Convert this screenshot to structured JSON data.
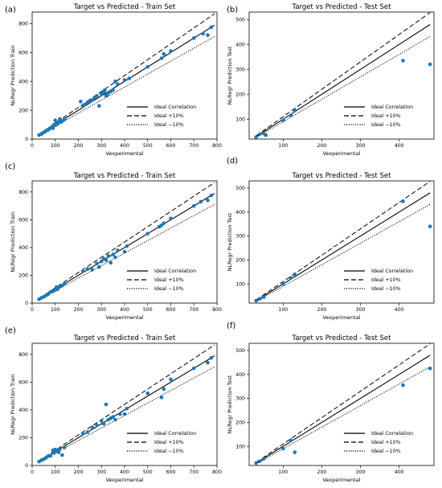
{
  "panel_labels": [
    "(a)",
    "(b)",
    "(c)",
    "(d)",
    "(e)",
    "(f)"
  ],
  "colors": {
    "point": "#1f77b4",
    "line": "#000000"
  },
  "legend": {
    "items": [
      "Ideal Correlation",
      "Ideal +10%",
      "Ideal −10%"
    ],
    "styles": [
      "solid",
      "dashed",
      "dotted"
    ],
    "placement": "lower-right"
  },
  "chart_data": [
    {
      "type": "scatter",
      "title": "Target vs Predicted - Train Set",
      "xlabel": "Vexperimental",
      "ylabel": "NLRegr Prediction Train",
      "xlim": [
        0,
        800
      ],
      "ylim": [
        0,
        880
      ],
      "xticks": [
        0,
        100,
        200,
        300,
        400,
        500,
        600,
        700,
        800
      ],
      "yticks": [
        0,
        200,
        400,
        600,
        800
      ],
      "ideal_range": [
        30,
        790
      ],
      "points": [
        [
          30,
          28
        ],
        [
          40,
          35
        ],
        [
          45,
          42
        ],
        [
          55,
          50
        ],
        [
          60,
          58
        ],
        [
          70,
          65
        ],
        [
          75,
          72
        ],
        [
          80,
          78
        ],
        [
          85,
          82
        ],
        [
          90,
          75
        ],
        [
          95,
          100
        ],
        [
          100,
          95
        ],
        [
          100,
          130
        ],
        [
          105,
          110
        ],
        [
          110,
          105
        ],
        [
          115,
          120
        ],
        [
          120,
          140
        ],
        [
          125,
          118
        ],
        [
          130,
          125
        ],
        [
          140,
          135
        ],
        [
          210,
          260
        ],
        [
          220,
          230
        ],
        [
          230,
          240
        ],
        [
          240,
          255
        ],
        [
          250,
          260
        ],
        [
          260,
          270
        ],
        [
          270,
          285
        ],
        [
          280,
          300
        ],
        [
          290,
          230
        ],
        [
          300,
          310
        ],
        [
          305,
          320
        ],
        [
          310,
          330
        ],
        [
          315,
          340
        ],
        [
          320,
          300
        ],
        [
          325,
          310
        ],
        [
          330,
          320
        ],
        [
          340,
          330
        ],
        [
          350,
          340
        ],
        [
          360,
          400
        ],
        [
          370,
          380
        ],
        [
          400,
          410
        ],
        [
          420,
          420
        ],
        [
          500,
          500
        ],
        [
          560,
          560
        ],
        [
          570,
          590
        ],
        [
          600,
          610
        ],
        [
          700,
          700
        ],
        [
          740,
          730
        ],
        [
          760,
          720
        ],
        [
          775,
          775
        ]
      ]
    },
    {
      "type": "scatter",
      "title": "Target vs Predicted - Test Set",
      "xlabel": "Vexperimental",
      "ylabel": "NLRegr Prediction Test",
      "xlim": [
        12,
        490
      ],
      "ylim": [
        20,
        530
      ],
      "xticks": [
        100,
        200,
        300,
        400
      ],
      "yticks": [
        100,
        200,
        300,
        400,
        500
      ],
      "ideal_range": [
        30,
        480
      ],
      "points": [
        [
          30,
          28
        ],
        [
          40,
          40
        ],
        [
          50,
          42
        ],
        [
          55,
          36
        ],
        [
          100,
          95
        ],
        [
          120,
          115
        ],
        [
          130,
          135
        ],
        [
          410,
          335
        ],
        [
          480,
          320
        ]
      ]
    },
    {
      "type": "scatter",
      "title": "Target vs Predicted - Train Set",
      "xlabel": "Vexperimental",
      "ylabel": "NLRegr Prediction Train",
      "xlim": [
        0,
        800
      ],
      "ylim": [
        0,
        880
      ],
      "xticks": [
        0,
        100,
        200,
        300,
        400,
        500,
        600,
        700,
        800
      ],
      "yticks": [
        0,
        200,
        400,
        600,
        800
      ],
      "ideal_range": [
        30,
        790
      ],
      "points": [
        [
          30,
          28
        ],
        [
          40,
          38
        ],
        [
          50,
          45
        ],
        [
          60,
          55
        ],
        [
          70,
          65
        ],
        [
          80,
          80
        ],
        [
          90,
          85
        ],
        [
          100,
          95
        ],
        [
          105,
          115
        ],
        [
          110,
          100
        ],
        [
          120,
          118
        ],
        [
          130,
          125
        ],
        [
          140,
          140
        ],
        [
          220,
          230
        ],
        [
          240,
          245
        ],
        [
          260,
          240
        ],
        [
          280,
          285
        ],
        [
          290,
          260
        ],
        [
          300,
          300
        ],
        [
          310,
          320
        ],
        [
          320,
          310
        ],
        [
          330,
          340
        ],
        [
          340,
          290
        ],
        [
          350,
          350
        ],
        [
          360,
          330
        ],
        [
          370,
          380
        ],
        [
          400,
          370
        ],
        [
          410,
          410
        ],
        [
          500,
          500
        ],
        [
          550,
          550
        ],
        [
          560,
          560
        ],
        [
          570,
          575
        ],
        [
          600,
          610
        ],
        [
          700,
          700
        ],
        [
          730,
          730
        ],
        [
          760,
          740
        ],
        [
          775,
          775
        ]
      ]
    },
    {
      "type": "scatter",
      "title": "Target vs Predicted - Test Set",
      "xlabel": "Vexperimental",
      "ylabel": "NLRegr Prediction Test",
      "xlim": [
        12,
        490
      ],
      "ylim": [
        20,
        530
      ],
      "xticks": [
        100,
        200,
        300,
        400
      ],
      "yticks": [
        100,
        200,
        300,
        400,
        500
      ],
      "ideal_range": [
        30,
        480
      ],
      "points": [
        [
          30,
          30
        ],
        [
          40,
          38
        ],
        [
          50,
          45
        ],
        [
          100,
          100
        ],
        [
          120,
          125
        ],
        [
          130,
          140
        ],
        [
          410,
          445
        ],
        [
          480,
          340
        ]
      ]
    },
    {
      "type": "scatter",
      "title": "Target vs Predicted - Train Set",
      "xlabel": "Vexperimental",
      "ylabel": "NLRegr Prediction Train",
      "xlim": [
        0,
        800
      ],
      "ylim": [
        0,
        880
      ],
      "xticks": [
        0,
        100,
        200,
        300,
        400,
        500,
        600,
        700,
        800
      ],
      "yticks": [
        0,
        200,
        400,
        600,
        800
      ],
      "ideal_range": [
        30,
        790
      ],
      "points": [
        [
          30,
          28
        ],
        [
          40,
          38
        ],
        [
          50,
          45
        ],
        [
          60,
          55
        ],
        [
          70,
          68
        ],
        [
          80,
          70
        ],
        [
          90,
          110
        ],
        [
          95,
          90
        ],
        [
          100,
          115
        ],
        [
          110,
          100
        ],
        [
          115,
          95
        ],
        [
          120,
          118
        ],
        [
          130,
          75
        ],
        [
          140,
          130
        ],
        [
          220,
          230
        ],
        [
          240,
          240
        ],
        [
          260,
          275
        ],
        [
          280,
          290
        ],
        [
          300,
          320
        ],
        [
          310,
          300
        ],
        [
          320,
          440
        ],
        [
          330,
          330
        ],
        [
          340,
          340
        ],
        [
          350,
          350
        ],
        [
          360,
          330
        ],
        [
          380,
          370
        ],
        [
          400,
          370
        ],
        [
          410,
          410
        ],
        [
          500,
          520
        ],
        [
          560,
          490
        ],
        [
          570,
          550
        ],
        [
          600,
          620
        ],
        [
          700,
          700
        ],
        [
          760,
          740
        ],
        [
          775,
          775
        ]
      ]
    },
    {
      "type": "scatter",
      "title": "Target vs Predicted - Test Set",
      "xlabel": "Vexperimental",
      "ylabel": "NLRegr Prediction Test",
      "xlim": [
        12,
        490
      ],
      "ylim": [
        20,
        530
      ],
      "xticks": [
        100,
        200,
        300,
        400
      ],
      "yticks": [
        100,
        200,
        300,
        400,
        500
      ],
      "ideal_range": [
        30,
        480
      ],
      "points": [
        [
          30,
          30
        ],
        [
          40,
          38
        ],
        [
          50,
          48
        ],
        [
          100,
          90
        ],
        [
          120,
          125
        ],
        [
          130,
          75
        ],
        [
          410,
          355
        ],
        [
          480,
          425
        ]
      ]
    }
  ]
}
